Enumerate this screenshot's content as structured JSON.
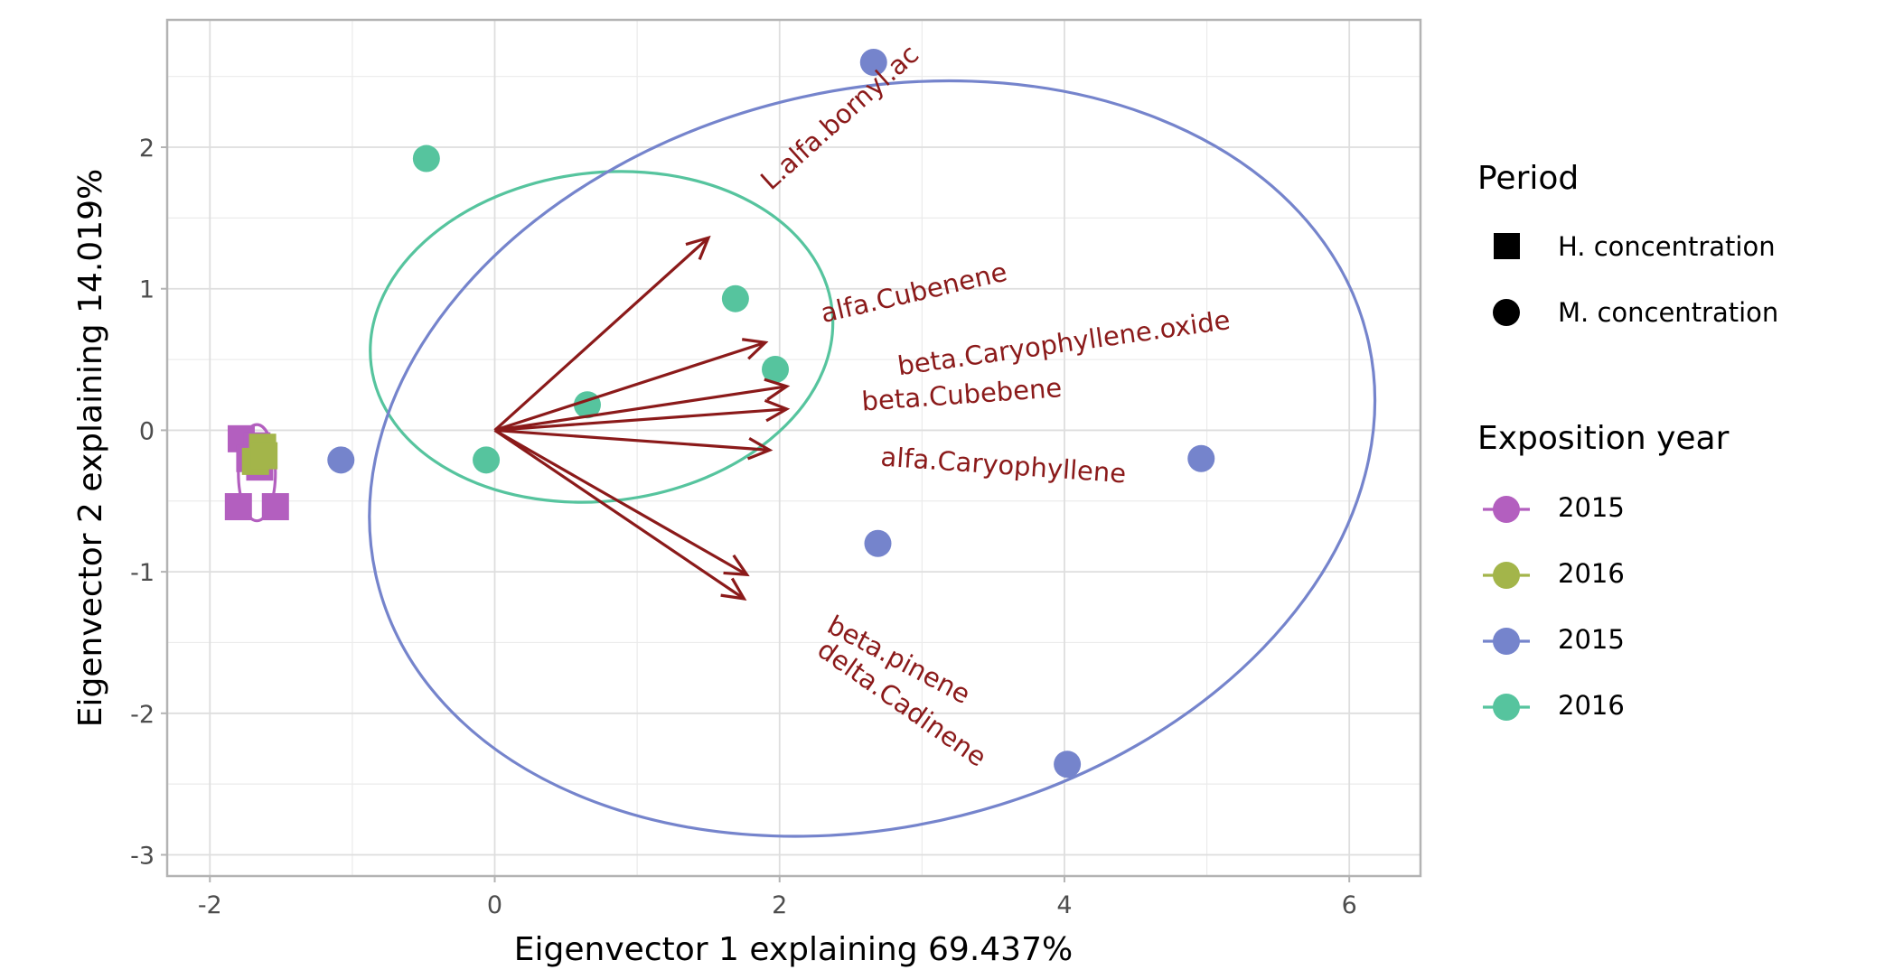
{
  "chart_data": {
    "type": "scatter",
    "subtype": "PCA biplot",
    "title": "",
    "xlabel": "Eigenvector 1 explaining 69.437%",
    "ylabel": "Eigenvector 2 explaining 14.019%",
    "xlim": [
      -2.3,
      6.5
    ],
    "ylim": [
      -3.15,
      2.9
    ],
    "x_ticks": [
      -2,
      0,
      2,
      4,
      6
    ],
    "y_ticks": [
      -3,
      -2,
      -1,
      0,
      1,
      2
    ],
    "grid": true,
    "legend_position": "right",
    "legend": {
      "period": {
        "title": "Period",
        "entries": [
          {
            "label": "H. concentration",
            "shape": "square"
          },
          {
            "label": "M. concentration",
            "shape": "circle"
          }
        ]
      },
      "year": {
        "title": "Exposition year",
        "entries": [
          {
            "label": "2015",
            "color": "#b35fbf"
          },
          {
            "label": "2016",
            "color": "#a3b54a"
          },
          {
            "label": "2015",
            "color": "#7584cc"
          },
          {
            "label": "2016",
            "color": "#56c49e"
          }
        ]
      }
    },
    "series": [
      {
        "color": "#b35fbf",
        "shape": "square",
        "points": [
          [
            -1.78,
            -0.06
          ],
          [
            -1.67,
            -0.11
          ],
          [
            -1.8,
            -0.54
          ],
          [
            -1.54,
            -0.54
          ],
          [
            -1.65,
            -0.26
          ],
          [
            -1.72,
            -0.2
          ]
        ]
      },
      {
        "color": "#a3b54a",
        "shape": "square",
        "points": [
          [
            -1.63,
            -0.12
          ],
          [
            -1.68,
            -0.22
          ],
          [
            -1.62,
            -0.18
          ]
        ]
      },
      {
        "color": "#7584cc",
        "shape": "circle",
        "points": [
          [
            2.66,
            2.6
          ],
          [
            -1.08,
            -0.21
          ],
          [
            4.96,
            -0.2
          ],
          [
            2.69,
            -0.8
          ],
          [
            4.02,
            -2.36
          ]
        ]
      },
      {
        "color": "#56c49e",
        "shape": "circle",
        "points": [
          [
            -0.48,
            1.92
          ],
          [
            1.69,
            0.93
          ],
          [
            1.97,
            0.43
          ],
          [
            0.65,
            0.18
          ],
          [
            -0.06,
            -0.21
          ]
        ]
      }
    ],
    "ellipses": [
      {
        "color": "#b35fbf",
        "cx": -1.67,
        "cy": -0.3,
        "rx": 0.13,
        "ry": 0.34,
        "angle": 0
      },
      {
        "color": "#56c49e",
        "cx": 0.75,
        "cy": 0.66,
        "rx": 1.63,
        "ry": 1.16,
        "angle": -7
      },
      {
        "color": "#7584cc",
        "cx": 2.65,
        "cy": -0.2,
        "rx": 3.58,
        "ry": 2.6,
        "angle": -14
      }
    ],
    "loadings": {
      "color": "#8b1a1a",
      "origin": [
        0,
        0
      ],
      "vectors": [
        {
          "name": "L.alfa.bornyl.acetate",
          "label": "L.alfa.bornyl.ac",
          "x": 1.5,
          "y": 1.36
        },
        {
          "name": "alfa.Cubenene",
          "label": "alfa.Cubenene",
          "x": 1.9,
          "y": 0.62
        },
        {
          "name": "beta.Caryophyllene.oxide",
          "label": "beta.Caryophyllene.oxide",
          "x": 2.05,
          "y": 0.31
        },
        {
          "name": "beta.Cubebene",
          "label": "beta.Cubebene",
          "x": 2.05,
          "y": 0.15
        },
        {
          "name": "alfa.Caryophyllene",
          "label": "alfa.Caryophyllene",
          "x": 1.93,
          "y": -0.14
        },
        {
          "name": "beta.pinene",
          "label": "beta.pinene",
          "x": 1.77,
          "y": -1.02
        },
        {
          "name": "delta.Cadinene",
          "label": "delta.Cadinene",
          "x": 1.75,
          "y": -1.19
        }
      ]
    }
  }
}
